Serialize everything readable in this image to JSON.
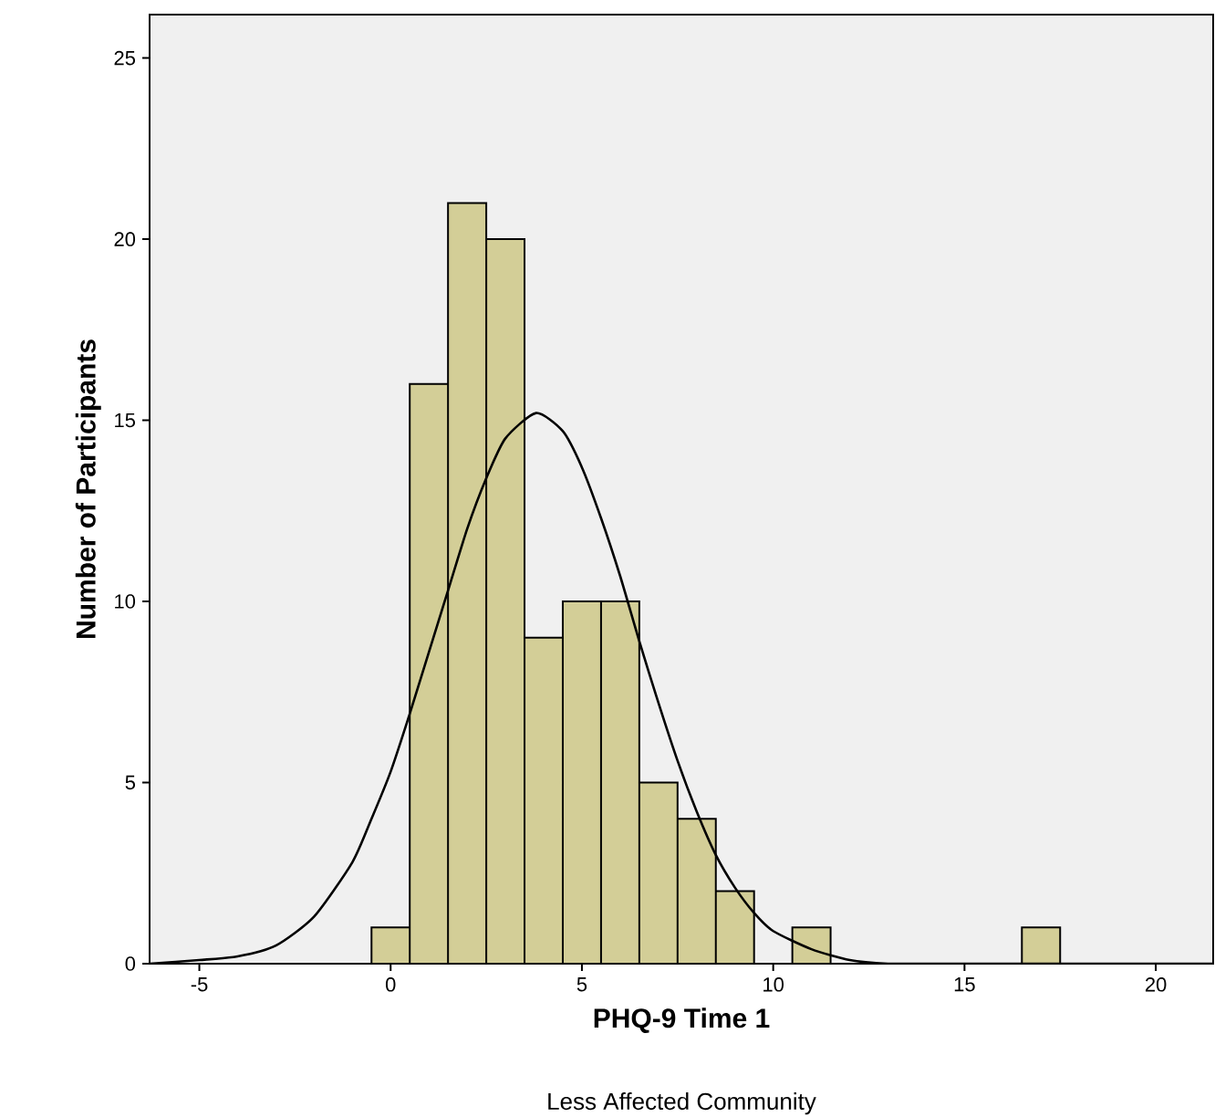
{
  "chart_data": {
    "type": "histogram",
    "xlabel": "PHQ-9 Time 1",
    "ylabel": "Number of Participants",
    "annotations": [
      "Less Affected Community"
    ],
    "bins": [
      -0.5,
      0.5,
      1.5,
      2.5,
      3.5,
      4.5,
      5.5,
      6.5,
      7.5,
      8.5,
      9.5,
      10.5,
      11.5,
      12.5,
      13.5,
      14.5,
      15.5,
      16.5,
      17.5
    ],
    "values": [
      1,
      16,
      21,
      20,
      9,
      10,
      10,
      5,
      4,
      2,
      0,
      1,
      0,
      0,
      0,
      0,
      0,
      1
    ],
    "color": "#d3ce97",
    "series": [
      {
        "type": "line",
        "color": "#000000",
        "x": [
          -6.3,
          -5,
          -4,
          -3,
          -2,
          -1,
          -0.5,
          0,
          0.5,
          1,
          1.5,
          2,
          2.5,
          3,
          3.8,
          4.5,
          5,
          5.5,
          6,
          6.5,
          7,
          7.5,
          8,
          8.5,
          9,
          9.5,
          10,
          11,
          12,
          13,
          14,
          15,
          17,
          19,
          21.5
        ],
        "values": [
          0,
          0.1,
          0.2,
          0.5,
          1.3,
          2.8,
          4.0,
          5.3,
          6.9,
          8.6,
          10.3,
          12.0,
          13.4,
          14.5,
          15.2,
          14.7,
          13.7,
          12.3,
          10.7,
          8.9,
          7.2,
          5.6,
          4.2,
          3.0,
          2.1,
          1.4,
          0.9,
          0.4,
          0.1,
          0,
          0,
          0,
          0,
          0,
          0
        ]
      }
    ],
    "xlim": [
      -6.3,
      21.5
    ],
    "ylim": [
      0,
      26.2
    ],
    "xticks": [
      -5,
      0,
      5,
      10,
      15,
      20
    ],
    "yticks": [
      0,
      5,
      10,
      15,
      20,
      25
    ],
    "grid": false,
    "marker": "none",
    "line_style": "solid"
  }
}
